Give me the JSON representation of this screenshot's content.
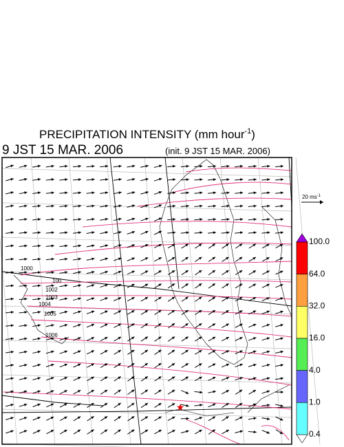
{
  "header": {
    "title": "PRECIPITATION INTENSITY (mm hour",
    "title_exponent": "-1",
    "title_close": ")",
    "valid_time": "9 JST 15 MAR. 2006",
    "init_time": "(init. 9 JST 15 MAR. 2006)"
  },
  "wind_scale": {
    "label": "20 ms",
    "exponent": "-1"
  },
  "colorbar": {
    "labels": [
      "100.0",
      "64.0",
      "32.0",
      "16.0",
      "4.0",
      "1.0",
      "0.4"
    ]
  },
  "contour_labels": [
    "1000",
    "100",
    "1002",
    "1003",
    "1004",
    "1005",
    "1006"
  ]
}
